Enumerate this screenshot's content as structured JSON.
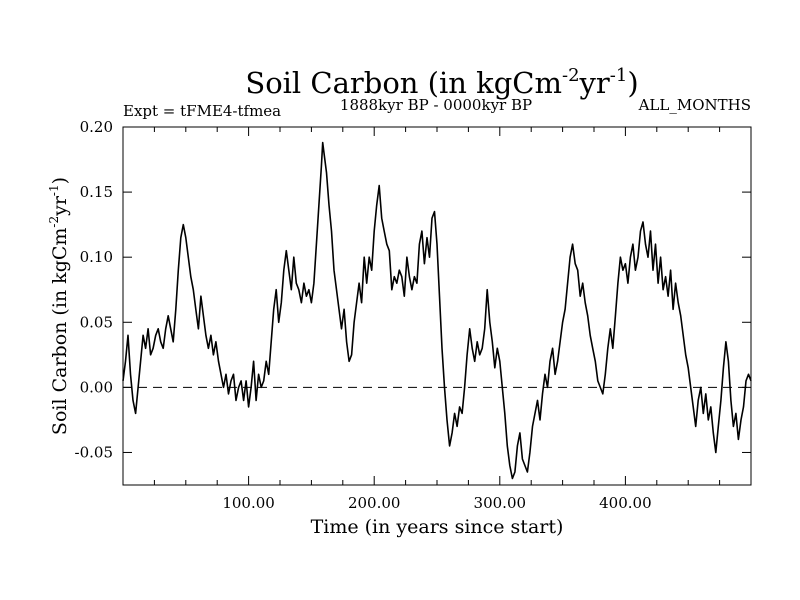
{
  "chart_data": {
    "type": "line",
    "title": {
      "main": "Soil Carbon (in kgCm",
      "sup1": "-2",
      "mid": "yr",
      "sup2": "-1",
      "end": ")"
    },
    "subtitle_left": "Expt = tFME4-tfmea",
    "subtitle_center": "1888kyr BP - 0000kyr BP",
    "subtitle_right": "ALL_MONTHS",
    "xlabel": "Time (in years since start)",
    "ylabel": {
      "main": "Soil Carbon (in kgCm",
      "sup1": "-2",
      "mid": "yr",
      "sup2": "-1",
      "end": ")"
    },
    "xlim": [
      0,
      500
    ],
    "ylim": [
      -0.075,
      0.2
    ],
    "x_ticks": [
      100,
      200,
      300,
      400
    ],
    "x_tick_labels": [
      "100.00",
      "200.00",
      "300.00",
      "400.00"
    ],
    "y_ticks": [
      -0.05,
      0.0,
      0.05,
      0.1,
      0.15,
      0.2
    ],
    "y_tick_labels": [
      "-0.05",
      "0.00",
      "0.05",
      "0.10",
      "0.15",
      "0.20"
    ],
    "reference_line": {
      "y": 0.0,
      "style": "dashed"
    },
    "series": [
      {
        "name": "Soil Carbon",
        "color": "#000000",
        "points": [
          [
            0,
            0.005
          ],
          [
            2,
            0.02
          ],
          [
            4,
            0.04
          ],
          [
            6,
            0.01
          ],
          [
            8,
            -0.01
          ],
          [
            10,
            -0.02
          ],
          [
            12,
            0.0
          ],
          [
            14,
            0.02
          ],
          [
            16,
            0.04
          ],
          [
            18,
            0.03
          ],
          [
            20,
            0.045
          ],
          [
            22,
            0.025
          ],
          [
            24,
            0.03
          ],
          [
            26,
            0.04
          ],
          [
            28,
            0.045
          ],
          [
            30,
            0.035
          ],
          [
            32,
            0.03
          ],
          [
            34,
            0.045
          ],
          [
            36,
            0.055
          ],
          [
            38,
            0.045
          ],
          [
            40,
            0.035
          ],
          [
            42,
            0.06
          ],
          [
            44,
            0.09
          ],
          [
            46,
            0.115
          ],
          [
            48,
            0.125
          ],
          [
            50,
            0.115
          ],
          [
            52,
            0.1
          ],
          [
            54,
            0.085
          ],
          [
            56,
            0.075
          ],
          [
            58,
            0.06
          ],
          [
            60,
            0.045
          ],
          [
            62,
            0.07
          ],
          [
            64,
            0.055
          ],
          [
            66,
            0.04
          ],
          [
            68,
            0.03
          ],
          [
            70,
            0.04
          ],
          [
            72,
            0.025
          ],
          [
            74,
            0.035
          ],
          [
            76,
            0.02
          ],
          [
            78,
            0.01
          ],
          [
            80,
            0.0
          ],
          [
            82,
            0.01
          ],
          [
            84,
            -0.005
          ],
          [
            86,
            0.005
          ],
          [
            88,
            0.01
          ],
          [
            90,
            -0.01
          ],
          [
            92,
            0.0
          ],
          [
            94,
            0.005
          ],
          [
            96,
            -0.01
          ],
          [
            98,
            0.005
          ],
          [
            100,
            -0.015
          ],
          [
            102,
            0.0
          ],
          [
            104,
            0.02
          ],
          [
            106,
            -0.01
          ],
          [
            108,
            0.01
          ],
          [
            110,
            0.0
          ],
          [
            112,
            0.005
          ],
          [
            114,
            0.02
          ],
          [
            116,
            0.01
          ],
          [
            118,
            0.035
          ],
          [
            120,
            0.06
          ],
          [
            122,
            0.075
          ],
          [
            124,
            0.05
          ],
          [
            126,
            0.065
          ],
          [
            128,
            0.09
          ],
          [
            130,
            0.105
          ],
          [
            132,
            0.09
          ],
          [
            134,
            0.075
          ],
          [
            136,
            0.1
          ],
          [
            138,
            0.08
          ],
          [
            140,
            0.075
          ],
          [
            142,
            0.065
          ],
          [
            144,
            0.08
          ],
          [
            146,
            0.07
          ],
          [
            148,
            0.075
          ],
          [
            150,
            0.065
          ],
          [
            152,
            0.08
          ],
          [
            154,
            0.11
          ],
          [
            156,
            0.14
          ],
          [
            158,
            0.17
          ],
          [
            159,
            0.188
          ],
          [
            160,
            0.18
          ],
          [
            162,
            0.165
          ],
          [
            164,
            0.14
          ],
          [
            166,
            0.12
          ],
          [
            168,
            0.09
          ],
          [
            170,
            0.075
          ],
          [
            172,
            0.06
          ],
          [
            174,
            0.045
          ],
          [
            176,
            0.06
          ],
          [
            178,
            0.035
          ],
          [
            180,
            0.02
          ],
          [
            182,
            0.025
          ],
          [
            184,
            0.05
          ],
          [
            186,
            0.065
          ],
          [
            188,
            0.08
          ],
          [
            190,
            0.065
          ],
          [
            192,
            0.1
          ],
          [
            194,
            0.08
          ],
          [
            196,
            0.1
          ],
          [
            198,
            0.09
          ],
          [
            200,
            0.12
          ],
          [
            202,
            0.14
          ],
          [
            204,
            0.155
          ],
          [
            206,
            0.13
          ],
          [
            208,
            0.12
          ],
          [
            210,
            0.11
          ],
          [
            212,
            0.105
          ],
          [
            214,
            0.075
          ],
          [
            216,
            0.085
          ],
          [
            218,
            0.08
          ],
          [
            220,
            0.09
          ],
          [
            222,
            0.085
          ],
          [
            224,
            0.07
          ],
          [
            226,
            0.1
          ],
          [
            228,
            0.085
          ],
          [
            230,
            0.075
          ],
          [
            232,
            0.085
          ],
          [
            234,
            0.08
          ],
          [
            236,
            0.11
          ],
          [
            238,
            0.12
          ],
          [
            240,
            0.095
          ],
          [
            242,
            0.115
          ],
          [
            244,
            0.1
          ],
          [
            246,
            0.13
          ],
          [
            248,
            0.135
          ],
          [
            250,
            0.11
          ],
          [
            252,
            0.07
          ],
          [
            254,
            0.03
          ],
          [
            256,
            0.0
          ],
          [
            258,
            -0.025
          ],
          [
            260,
            -0.045
          ],
          [
            262,
            -0.035
          ],
          [
            264,
            -0.02
          ],
          [
            266,
            -0.03
          ],
          [
            268,
            -0.015
          ],
          [
            270,
            -0.02
          ],
          [
            272,
            0.0
          ],
          [
            274,
            0.025
          ],
          [
            276,
            0.045
          ],
          [
            278,
            0.03
          ],
          [
            280,
            0.02
          ],
          [
            282,
            0.035
          ],
          [
            284,
            0.025
          ],
          [
            286,
            0.03
          ],
          [
            288,
            0.045
          ],
          [
            290,
            0.075
          ],
          [
            292,
            0.05
          ],
          [
            294,
            0.035
          ],
          [
            296,
            0.015
          ],
          [
            298,
            0.03
          ],
          [
            300,
            0.02
          ],
          [
            302,
            0.0
          ],
          [
            304,
            -0.02
          ],
          [
            306,
            -0.045
          ],
          [
            308,
            -0.06
          ],
          [
            310,
            -0.07
          ],
          [
            312,
            -0.065
          ],
          [
            314,
            -0.045
          ],
          [
            316,
            -0.035
          ],
          [
            318,
            -0.055
          ],
          [
            320,
            -0.06
          ],
          [
            322,
            -0.065
          ],
          [
            324,
            -0.05
          ],
          [
            326,
            -0.03
          ],
          [
            328,
            -0.02
          ],
          [
            330,
            -0.01
          ],
          [
            332,
            -0.025
          ],
          [
            334,
            -0.005
          ],
          [
            336,
            0.01
          ],
          [
            338,
            0.0
          ],
          [
            340,
            0.02
          ],
          [
            342,
            0.03
          ],
          [
            344,
            0.01
          ],
          [
            346,
            0.02
          ],
          [
            348,
            0.035
          ],
          [
            350,
            0.05
          ],
          [
            352,
            0.06
          ],
          [
            354,
            0.08
          ],
          [
            356,
            0.1
          ],
          [
            358,
            0.11
          ],
          [
            360,
            0.095
          ],
          [
            362,
            0.09
          ],
          [
            364,
            0.07
          ],
          [
            366,
            0.08
          ],
          [
            368,
            0.065
          ],
          [
            370,
            0.055
          ],
          [
            372,
            0.04
          ],
          [
            374,
            0.03
          ],
          [
            376,
            0.02
          ],
          [
            378,
            0.005
          ],
          [
            380,
            0.0
          ],
          [
            382,
            -0.005
          ],
          [
            384,
            0.01
          ],
          [
            386,
            0.03
          ],
          [
            388,
            0.045
          ],
          [
            390,
            0.03
          ],
          [
            392,
            0.055
          ],
          [
            394,
            0.08
          ],
          [
            396,
            0.1
          ],
          [
            398,
            0.09
          ],
          [
            400,
            0.095
          ],
          [
            402,
            0.08
          ],
          [
            404,
            0.1
          ],
          [
            406,
            0.11
          ],
          [
            408,
            0.09
          ],
          [
            410,
            0.1
          ],
          [
            412,
            0.12
          ],
          [
            414,
            0.127
          ],
          [
            416,
            0.11
          ],
          [
            418,
            0.1
          ],
          [
            420,
            0.12
          ],
          [
            422,
            0.09
          ],
          [
            424,
            0.11
          ],
          [
            426,
            0.08
          ],
          [
            428,
            0.1
          ],
          [
            430,
            0.075
          ],
          [
            432,
            0.085
          ],
          [
            434,
            0.07
          ],
          [
            436,
            0.09
          ],
          [
            438,
            0.06
          ],
          [
            440,
            0.08
          ],
          [
            442,
            0.065
          ],
          [
            444,
            0.055
          ],
          [
            446,
            0.04
          ],
          [
            448,
            0.025
          ],
          [
            450,
            0.015
          ],
          [
            452,
            0.0
          ],
          [
            454,
            -0.015
          ],
          [
            456,
            -0.03
          ],
          [
            458,
            -0.01
          ],
          [
            460,
            0.0
          ],
          [
            462,
            -0.02
          ],
          [
            464,
            -0.005
          ],
          [
            466,
            -0.025
          ],
          [
            468,
            -0.015
          ],
          [
            470,
            -0.035
          ],
          [
            472,
            -0.05
          ],
          [
            474,
            -0.03
          ],
          [
            476,
            -0.01
          ],
          [
            478,
            0.015
          ],
          [
            480,
            0.035
          ],
          [
            482,
            0.02
          ],
          [
            484,
            -0.01
          ],
          [
            486,
            -0.03
          ],
          [
            488,
            -0.02
          ],
          [
            490,
            -0.04
          ],
          [
            492,
            -0.025
          ],
          [
            494,
            -0.015
          ],
          [
            496,
            0.005
          ],
          [
            498,
            0.01
          ],
          [
            500,
            0.005
          ]
        ]
      }
    ]
  }
}
